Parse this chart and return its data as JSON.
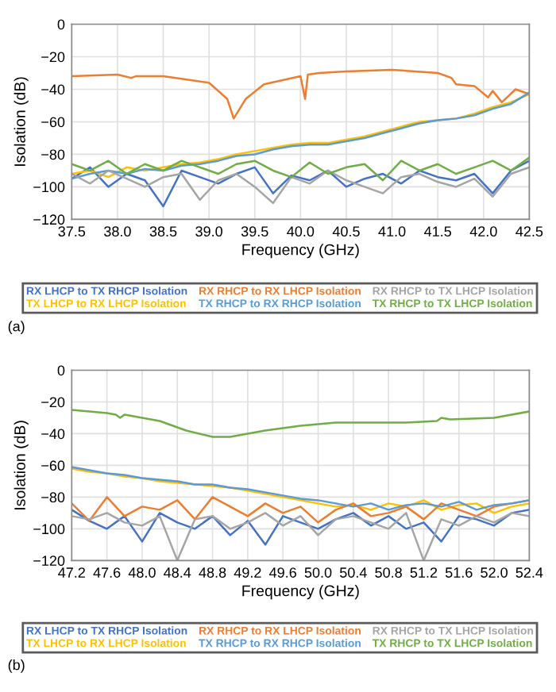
{
  "chart_data": [
    {
      "type": "line",
      "xlabel": "Frequency (GHz)",
      "ylabel": "Isolation (dB)",
      "grid": true,
      "legend": "bottom",
      "annotations": [
        "(a)"
      ],
      "xlim": [
        37.5,
        42.5
      ],
      "ylim": [
        -120,
        0
      ],
      "xticks": [
        37.5,
        {
          "value": 38,
          "label": "38.0"
        },
        38.5,
        {
          "value": 39,
          "label": "39.0"
        },
        39.5,
        {
          "value": 40,
          "label": "40.0"
        },
        40.5,
        {
          "value": 41,
          "label": "41.0"
        },
        41.5,
        {
          "value": 42,
          "label": "42.0"
        },
        42.5
      ],
      "yticks": [
        0,
        {
          "value": -20,
          "label": "−20"
        },
        {
          "value": -40,
          "label": "−40"
        },
        {
          "value": -60,
          "label": "−60"
        },
        {
          "value": -80,
          "label": "−80"
        },
        {
          "value": -100,
          "label": "−100"
        },
        {
          "value": -120,
          "label": "−120"
        }
      ],
      "x": [
        37.5,
        37.7,
        37.9,
        38.1,
        38.3,
        38.5,
        38.7,
        38.9,
        39.1,
        39.3,
        39.5,
        39.7,
        39.9,
        40.1,
        40.3,
        40.5,
        40.7,
        40.9,
        41.1,
        41.3,
        41.5,
        41.7,
        41.9,
        42.1,
        42.3,
        42.5
      ],
      "series": [
        {
          "name": "RX LHCP to TX RHCP Isolation",
          "color": "#4472c4",
          "values": [
            -95,
            -88,
            -100,
            -92,
            -96,
            -112,
            -90,
            -94,
            -98,
            -92,
            -88,
            -104,
            -93,
            -96,
            -90,
            -100,
            -95,
            -92,
            -98,
            -90,
            -94,
            -96,
            -92,
            -104,
            -90,
            -84
          ]
        },
        {
          "name": "TX LHCP to RX LHCP Isolation",
          "color": "#ffc000",
          "values": [
            -92,
            -90,
            -94,
            -88,
            -90,
            -88,
            -86,
            -85,
            -83,
            -80,
            -78,
            -76,
            -74,
            -73,
            -73,
            -71,
            -69,
            -66,
            -63,
            -60,
            -59,
            -58,
            -55,
            -51,
            -48,
            -43
          ]
        },
        {
          "name": "RX RHCP to RX LHCP Isolation",
          "color": "#ed7d31",
          "x": [
            37.5,
            38.0,
            38.15,
            38.2,
            38.5,
            39.0,
            39.2,
            39.27,
            39.4,
            39.6,
            40.0,
            40.05,
            40.08,
            40.2,
            40.5,
            41.0,
            41.5,
            41.65,
            41.7,
            41.9,
            42.05,
            42.1,
            42.2,
            42.35,
            42.5
          ],
          "values": [
            -32,
            -31,
            -33,
            -32,
            -32,
            -36,
            -46,
            -58,
            -46,
            -37,
            -32,
            -46,
            -31,
            -30,
            -29,
            -28,
            -30,
            -33,
            -37,
            -38,
            -45,
            -41,
            -48,
            -40,
            -43
          ]
        },
        {
          "name": "TX RHCP to RX RHCP Isolation",
          "color": "#5b9bd5",
          "values": [
            -95,
            -92,
            -90,
            -92,
            -89,
            -90,
            -87,
            -86,
            -84,
            -81,
            -80,
            -77,
            -75,
            -74,
            -74,
            -72,
            -70,
            -67,
            -64,
            -61,
            -59,
            -58,
            -56,
            -52,
            -49,
            -42
          ]
        },
        {
          "name": "RX RHCP to TX LHCP Isolation",
          "color": "#a5a5a5",
          "values": [
            -92,
            -98,
            -90,
            -95,
            -100,
            -94,
            -92,
            -108,
            -96,
            -92,
            -100,
            -110,
            -94,
            -98,
            -90,
            -96,
            -100,
            -104,
            -94,
            -92,
            -97,
            -100,
            -95,
            -106,
            -92,
            -88
          ]
        },
        {
          "name": "TX RHCP to TX LHCP Isolation",
          "color": "#70ad47",
          "values": [
            -86,
            -90,
            -84,
            -92,
            -86,
            -90,
            -84,
            -88,
            -92,
            -86,
            -84,
            -90,
            -94,
            -85,
            -92,
            -88,
            -86,
            -96,
            -84,
            -90,
            -86,
            -92,
            -88,
            -84,
            -90,
            -82
          ]
        }
      ]
    },
    {
      "type": "line",
      "xlabel": "Frequency (GHz)",
      "ylabel": "Isolation (dB)",
      "grid": true,
      "legend": "bottom",
      "annotations": [
        "(b)"
      ],
      "xlim": [
        47.2,
        52.4
      ],
      "ylim": [
        -120,
        0
      ],
      "xticks": [
        47.2,
        47.6,
        {
          "value": 48,
          "label": "48.0"
        },
        48.4,
        48.8,
        49.2,
        49.6,
        {
          "value": 50,
          "label": "50.0"
        },
        50.4,
        50.8,
        51.2,
        51.6,
        {
          "value": 52,
          "label": "52.0"
        },
        52.4
      ],
      "yticks": [
        0,
        {
          "value": -20,
          "label": "−20"
        },
        {
          "value": -40,
          "label": "−40"
        },
        {
          "value": -60,
          "label": "−60"
        },
        {
          "value": -80,
          "label": "−80"
        },
        {
          "value": -100,
          "label": "−100"
        },
        {
          "value": -120,
          "label": "−120"
        }
      ],
      "x": [
        47.2,
        47.4,
        47.6,
        47.8,
        48.0,
        48.2,
        48.4,
        48.6,
        48.8,
        49.0,
        49.2,
        49.4,
        49.6,
        49.8,
        50.0,
        50.2,
        50.4,
        50.6,
        50.8,
        51.0,
        51.2,
        51.4,
        51.6,
        51.8,
        52.0,
        52.2,
        52.4
      ],
      "series": [
        {
          "name": "RX LHCP to TX RHCP Isolation",
          "color": "#4472c4",
          "values": [
            -88,
            -95,
            -100,
            -92,
            -108,
            -90,
            -96,
            -100,
            -92,
            -104,
            -95,
            -110,
            -92,
            -96,
            -100,
            -94,
            -90,
            -98,
            -92,
            -100,
            -96,
            -108,
            -92,
            -94,
            -98,
            -90,
            -88
          ]
        },
        {
          "name": "TX LHCP to RX LHCP Isolation",
          "color": "#ffc000",
          "values": [
            -62,
            -64,
            -65,
            -67,
            -68,
            -70,
            -71,
            -72,
            -73,
            -74,
            -76,
            -78,
            -80,
            -82,
            -84,
            -86,
            -85,
            -88,
            -84,
            -86,
            -82,
            -88,
            -85,
            -84,
            -90,
            -86,
            -84
          ]
        },
        {
          "name": "RX RHCP to RX LHCP Isolation",
          "color": "#ed7d31",
          "values": [
            -84,
            -95,
            -80,
            -92,
            -86,
            -88,
            -82,
            -94,
            -80,
            -86,
            -92,
            -84,
            -90,
            -86,
            -96,
            -88,
            -84,
            -92,
            -90,
            -86,
            -94,
            -84,
            -88,
            -92,
            -86,
            -84,
            -82
          ]
        },
        {
          "name": "TX RHCP to RX RHCP Isolation",
          "color": "#5b9bd5",
          "values": [
            -61,
            -63,
            -65,
            -66,
            -68,
            -69,
            -70,
            -72,
            -72,
            -74,
            -75,
            -77,
            -79,
            -81,
            -82,
            -84,
            -86,
            -84,
            -88,
            -85,
            -84,
            -86,
            -83,
            -88,
            -85,
            -84,
            -82
          ]
        },
        {
          "name": "RX RHCP to TX LHCP Isolation",
          "color": "#a5a5a5",
          "values": [
            -92,
            -94,
            -90,
            -96,
            -98,
            -92,
            -120,
            -94,
            -92,
            -100,
            -96,
            -90,
            -98,
            -92,
            -104,
            -94,
            -92,
            -96,
            -100,
            -90,
            -120,
            -94,
            -98,
            -92,
            -96,
            -90,
            -92
          ]
        },
        {
          "name": "TX RHCP to TX LHCP Isolation",
          "color": "#70ad47",
          "x": [
            47.2,
            47.6,
            47.7,
            47.75,
            47.8,
            48.2,
            48.5,
            48.8,
            49.0,
            49.4,
            49.8,
            50.2,
            51.0,
            51.35,
            51.4,
            51.5,
            52.0,
            52.4
          ],
          "values": [
            -25,
            -27,
            -28,
            -30,
            -28,
            -32,
            -38,
            -42,
            -42,
            -38,
            -35,
            -33,
            -33,
            -32,
            -30,
            -31,
            -30,
            -26
          ]
        }
      ]
    }
  ]
}
